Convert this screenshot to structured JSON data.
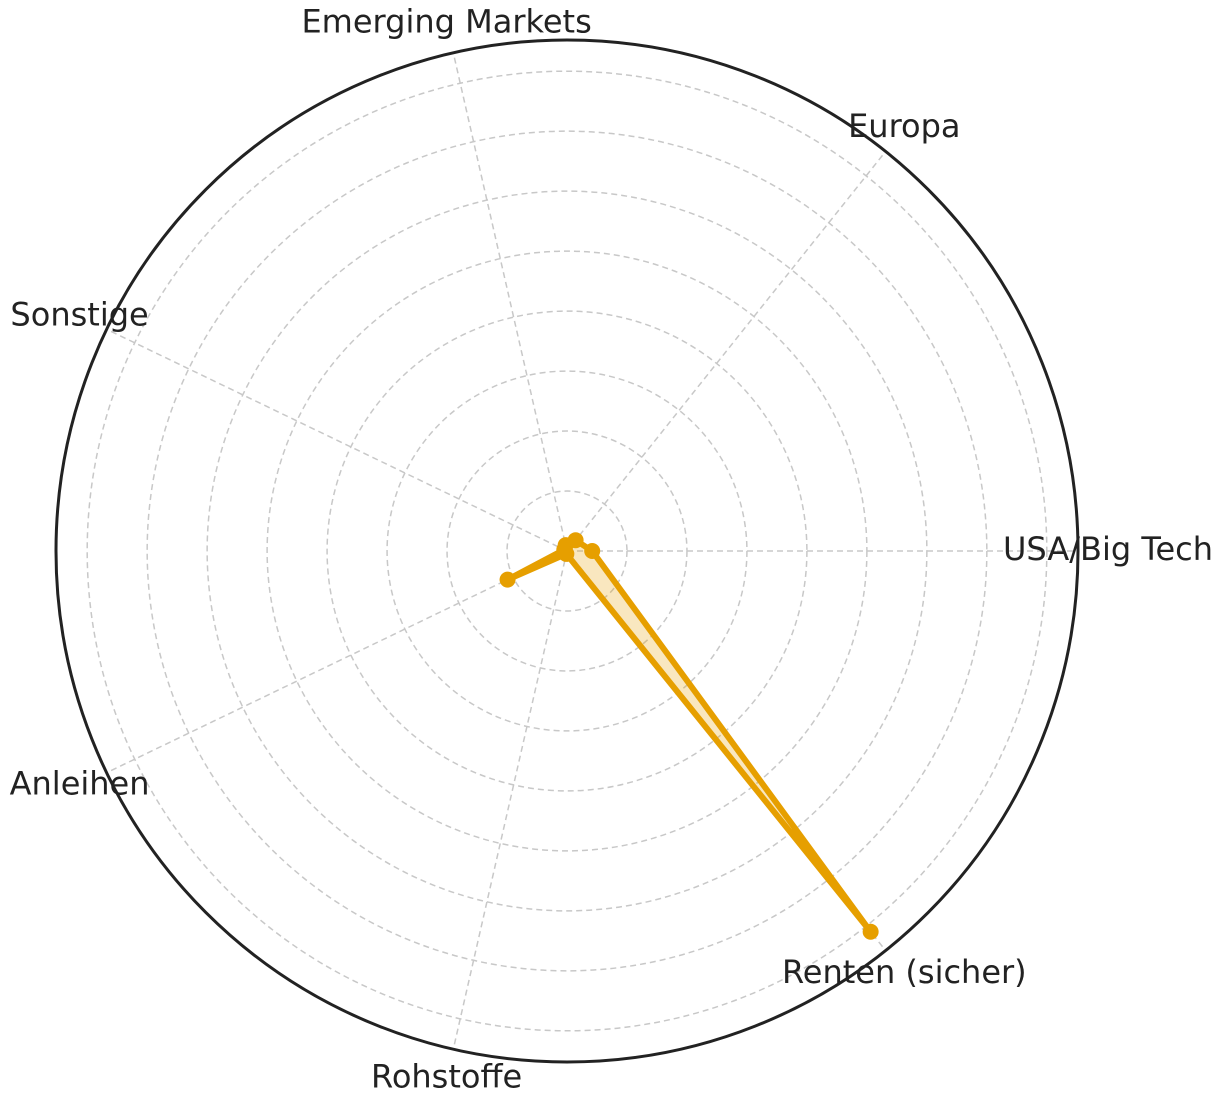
{
  "chart_data": {
    "type": "radar",
    "categories": [
      "USA/Big Tech",
      "Europa",
      "Emerging Markets",
      "Sonstige",
      "Anleihen",
      "Rohstoffe",
      "Renten (sicher)"
    ],
    "values": [
      0.42,
      0.23,
      0.1,
      0.05,
      1.1,
      0.05,
      8.12
    ],
    "color": "#e69f00",
    "ylim": [
      0,
      8.52
    ],
    "yticks": [
      1,
      2,
      3,
      4,
      5,
      6,
      7,
      8
    ],
    "grid": true
  }
}
